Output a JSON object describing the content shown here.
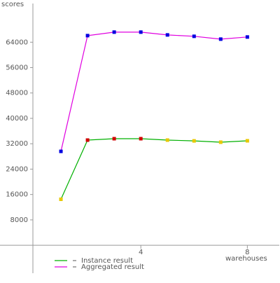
{
  "chart_data": {
    "type": "line",
    "y_label": "scores",
    "x_label": "warehouses",
    "x": [
      1,
      2,
      3,
      4,
      5,
      6,
      7,
      8
    ],
    "series": [
      {
        "name": "Instance result",
        "color": "#00b000",
        "point_colors": [
          "#e8c800",
          "#d00000",
          "#d00000",
          "#d00000",
          "#e8c800",
          "#e8c800",
          "#e8c800",
          "#e8c800"
        ],
        "values": [
          14500,
          33150,
          33590,
          33590,
          33150,
          32900,
          32490,
          32930
        ]
      },
      {
        "name": "Aggregated result",
        "color": "#e000e0",
        "point_colors": [
          "#0000e0",
          "#0000e0",
          "#0000e0",
          "#0000e0",
          "#0000e0",
          "#0000e0",
          "#0000e0",
          "#0000e0"
        ],
        "values": [
          29600,
          66080,
          67180,
          67180,
          66300,
          65860,
          64970,
          65640
        ]
      }
    ],
    "xlim": [
      0,
      9.2
    ],
    "ylim": [
      -8800,
      76200
    ],
    "xticks": [
      4,
      8
    ],
    "yticks": [
      8000,
      16000,
      24000,
      32000,
      40000,
      48000,
      56000,
      64000
    ],
    "grid": false
  }
}
